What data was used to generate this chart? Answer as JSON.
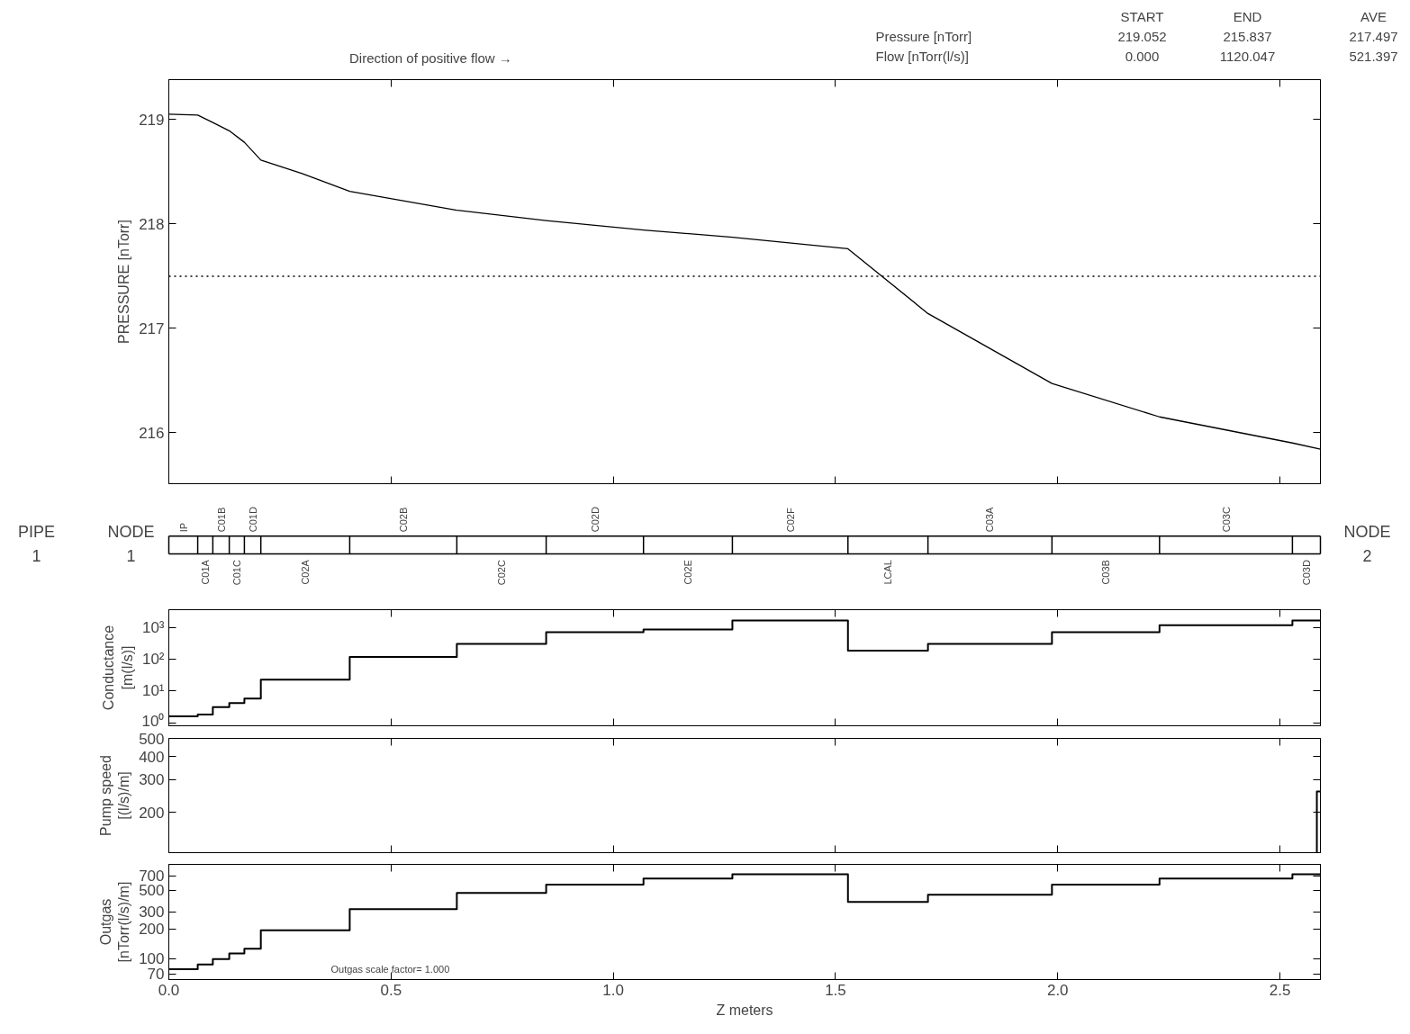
{
  "chart_data": [
    {
      "type": "line",
      "ylabel": "PRESSURE [nTorr]",
      "x": [
        0,
        0.065,
        0.099,
        0.136,
        0.17,
        0.207,
        0.3,
        0.407,
        0.648,
        0.849,
        1.068,
        1.268,
        1.528,
        1.708,
        1.987,
        2.229,
        2.528,
        2.591
      ],
      "values": [
        219.05,
        219.04,
        218.97,
        218.89,
        218.78,
        218.61,
        218.48,
        218.31,
        218.13,
        218.03,
        217.94,
        217.87,
        217.76,
        217.14,
        216.47,
        216.15,
        215.9,
        215.84
      ],
      "color": "#000000",
      "xlim": [
        0,
        2.591
      ],
      "ylim": [
        215.51,
        219.38
      ],
      "xticks": [
        0,
        0.5,
        1,
        1.5,
        2,
        2.5
      ],
      "yticks": [
        216,
        217,
        218,
        219
      ],
      "tick_labels": "y",
      "ref_lines": [
        {
          "axis": "y",
          "value": 217.497,
          "line_style": "dotted"
        }
      ],
      "annotations": [
        "Direction of positive flow  →",
        "START",
        "END",
        "AVE",
        "Pressure [nTorr]",
        "219.052",
        "215.837",
        "217.497",
        "Flow [nTorr(l/s)]",
        "0.000",
        "1120.047",
        "521.397"
      ]
    },
    {
      "type": "other",
      "categories": [
        "IP",
        "C01A",
        "C01B",
        "C01C",
        "C01D",
        "C02A",
        "C02B",
        "C02C",
        "C02D",
        "C02E",
        "C02F",
        "LCAL",
        "C03A",
        "C03B",
        "C03C",
        "C03D"
      ],
      "annotations": [
        "PIPE",
        "1",
        "NODE",
        "1",
        "NODE",
        "2"
      ]
    },
    {
      "type": "step",
      "ylabel": "Conductance\n[m(l/s)]",
      "log": true,
      "color": "#000000",
      "x": [
        0,
        0.065,
        0.099,
        0.136,
        0.17,
        0.207,
        0.407,
        0.648,
        0.849,
        1.068,
        1.268,
        1.528,
        1.708,
        1.987,
        2.229,
        2.528,
        2.591
      ],
      "values": [
        1.6,
        1.8,
        3.1,
        4.2,
        5.8,
        23,
        120,
        310,
        720,
        880,
        1700,
        190,
        310,
        720,
        1200,
        1700,
        1700
      ],
      "xlim": [
        0,
        2.591
      ],
      "ylim": [
        0.8,
        3700
      ],
      "xticks": [
        0,
        0.5,
        1,
        1.5,
        2,
        2.5
      ],
      "yticks": [
        {
          "value": 1,
          "label": "10⁰"
        },
        {
          "value": 10,
          "label": "10¹"
        },
        {
          "value": 100,
          "label": "10²"
        },
        {
          "value": 1000,
          "label": "10³"
        }
      ],
      "tick_labels": "y"
    },
    {
      "type": "step",
      "ylabel": "Pump speed\n[(l/s)/m]",
      "log": true,
      "color": "#000000",
      "x": [
        2.583,
        2.583,
        2.591
      ],
      "values": [
        122,
        260,
        260
      ],
      "xlim": [
        0,
        2.591
      ],
      "ylim": [
        122,
        500
      ],
      "xticks": [
        0,
        0.5,
        1,
        1.5,
        2,
        2.5
      ],
      "yticks": [
        200,
        300,
        400,
        500
      ],
      "tick_labels": "y"
    },
    {
      "type": "step",
      "ylabel": "Outgas\n[nTorr(l/s)/m]",
      "xlabel": "Z meters",
      "log": true,
      "color": "#000000",
      "x": [
        0,
        0.065,
        0.099,
        0.136,
        0.17,
        0.207,
        0.407,
        0.648,
        0.849,
        1.068,
        1.268,
        1.528,
        1.708,
        1.987,
        2.229,
        2.528,
        2.591
      ],
      "values": [
        78,
        87,
        99,
        113,
        126,
        195,
        320,
        470,
        570,
        660,
        730,
        380,
        450,
        570,
        660,
        730,
        730
      ],
      "xlim": [
        0,
        2.591
      ],
      "ylim": [
        61,
        920
      ],
      "xticks": [
        {
          "value": 0,
          "label": "0.0"
        },
        {
          "value": 0.5,
          "label": "0.5"
        },
        {
          "value": 1,
          "label": "1.0"
        },
        {
          "value": 1.5,
          "label": "1.5"
        },
        {
          "value": 2,
          "label": "2.0"
        },
        {
          "value": 2.5,
          "label": "2.5"
        }
      ],
      "yticks": [
        70,
        100,
        200,
        300,
        500,
        700
      ],
      "annotations": [
        "Outgas scale factor= 1.000"
      ]
    }
  ]
}
